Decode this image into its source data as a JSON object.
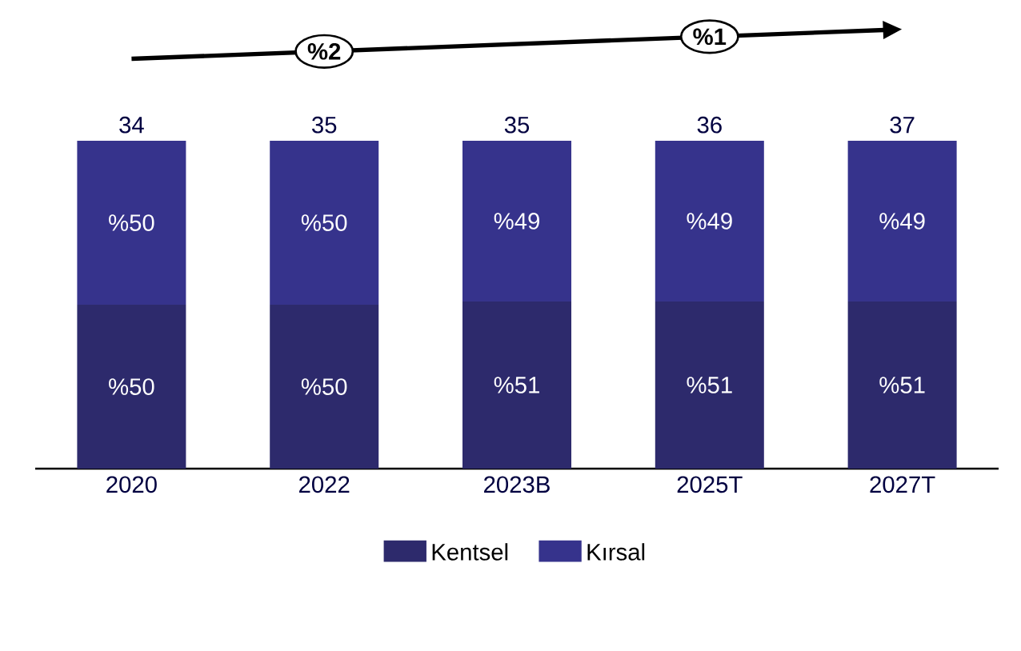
{
  "chart_data": {
    "type": "bar",
    "stacked": true,
    "categories": [
      "2020",
      "2022",
      "2023B",
      "2025T",
      "2027T"
    ],
    "series": [
      {
        "name": "Kentsel",
        "color": "#2d2a6c",
        "values": [
          50,
          50,
          51,
          51,
          51
        ],
        "value_labels": [
          "%50",
          "%50",
          "%51",
          "%51",
          "%51"
        ]
      },
      {
        "name": "Kırsal",
        "color": "#36338c",
        "values": [
          50,
          50,
          49,
          49,
          49
        ],
        "value_labels": [
          "%50",
          "%50",
          "%49",
          "%49",
          "%49"
        ]
      }
    ],
    "annotations": [
      "%2",
      "%1",
      {
        "text": "34",
        "x": "2020",
        "y": 100
      },
      {
        "text": "35",
        "x": "2022",
        "y": 100
      },
      {
        "text": "35",
        "x": "2023B",
        "y": 100
      },
      {
        "text": "36",
        "x": "2025T",
        "y": 100
      },
      {
        "text": "37",
        "x": "2027T",
        "y": 100
      }
    ],
    "legend": "bottom"
  }
}
